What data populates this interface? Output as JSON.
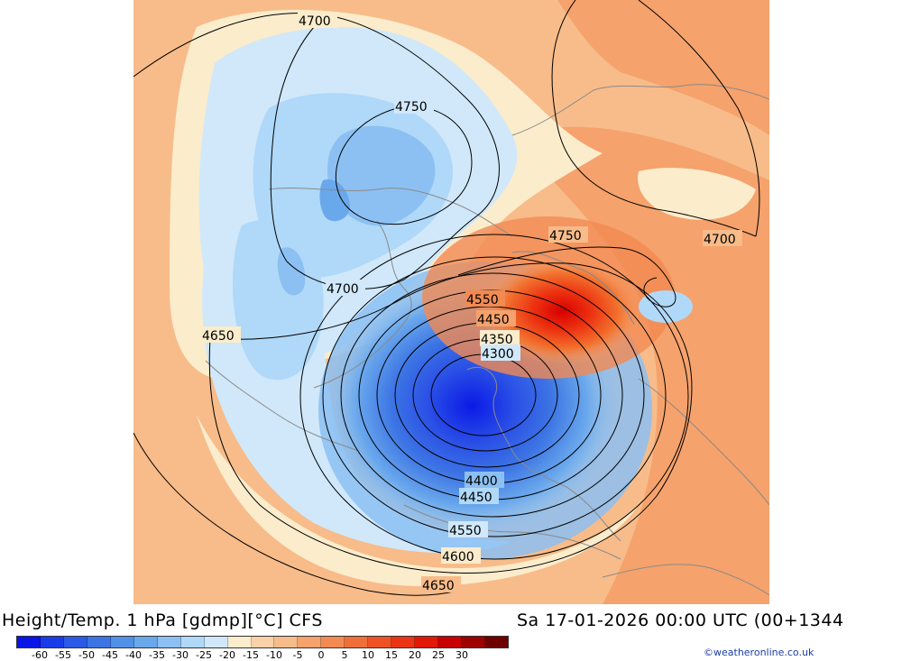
{
  "chart_title": "Height/Temp. 1 hPa [gdmp][°C] CFS",
  "valid_time": "Sa 17-01-2026 00:00 UTC (00+1344",
  "credit": "©weatheronline.co.uk",
  "colorbar": {
    "colors": [
      "#0a14e6",
      "#1a3ce8",
      "#2a5ae6",
      "#3c74e4",
      "#5090e6",
      "#6aa8ec",
      "#8cc0f2",
      "#b0d8f8",
      "#d0e8fa",
      "#fbeccc",
      "#f9d2a8",
      "#f7bc8a",
      "#f5a26c",
      "#f28a52",
      "#f06e38",
      "#ee5224",
      "#ea3414",
      "#e21808",
      "#c80000",
      "#9c0000",
      "#6e0000"
    ],
    "tick_labels": [
      "-60",
      "-55",
      "-50",
      "-45",
      "-40",
      "-35",
      "-30",
      "-25",
      "-20",
      "-15",
      "-10",
      "-5",
      "0",
      "5",
      "10",
      "15",
      "20",
      "25",
      "30"
    ]
  },
  "contour_labels": {
    "h4700_top": "4700",
    "h4750_north": "4750",
    "h4750_east": "4750",
    "h4700_east": "4700",
    "h4700_west": "4700",
    "h4650_west": "4650",
    "h4550_upper": "4550",
    "h4450_upper": "4450",
    "h4350_upper": "4350",
    "h4300_upper": "4300",
    "h4400_lower": "4400",
    "h4450_lower": "4450",
    "h4550_lower": "4550",
    "h4600_lower": "4600",
    "h4650_lower": "4650"
  }
}
